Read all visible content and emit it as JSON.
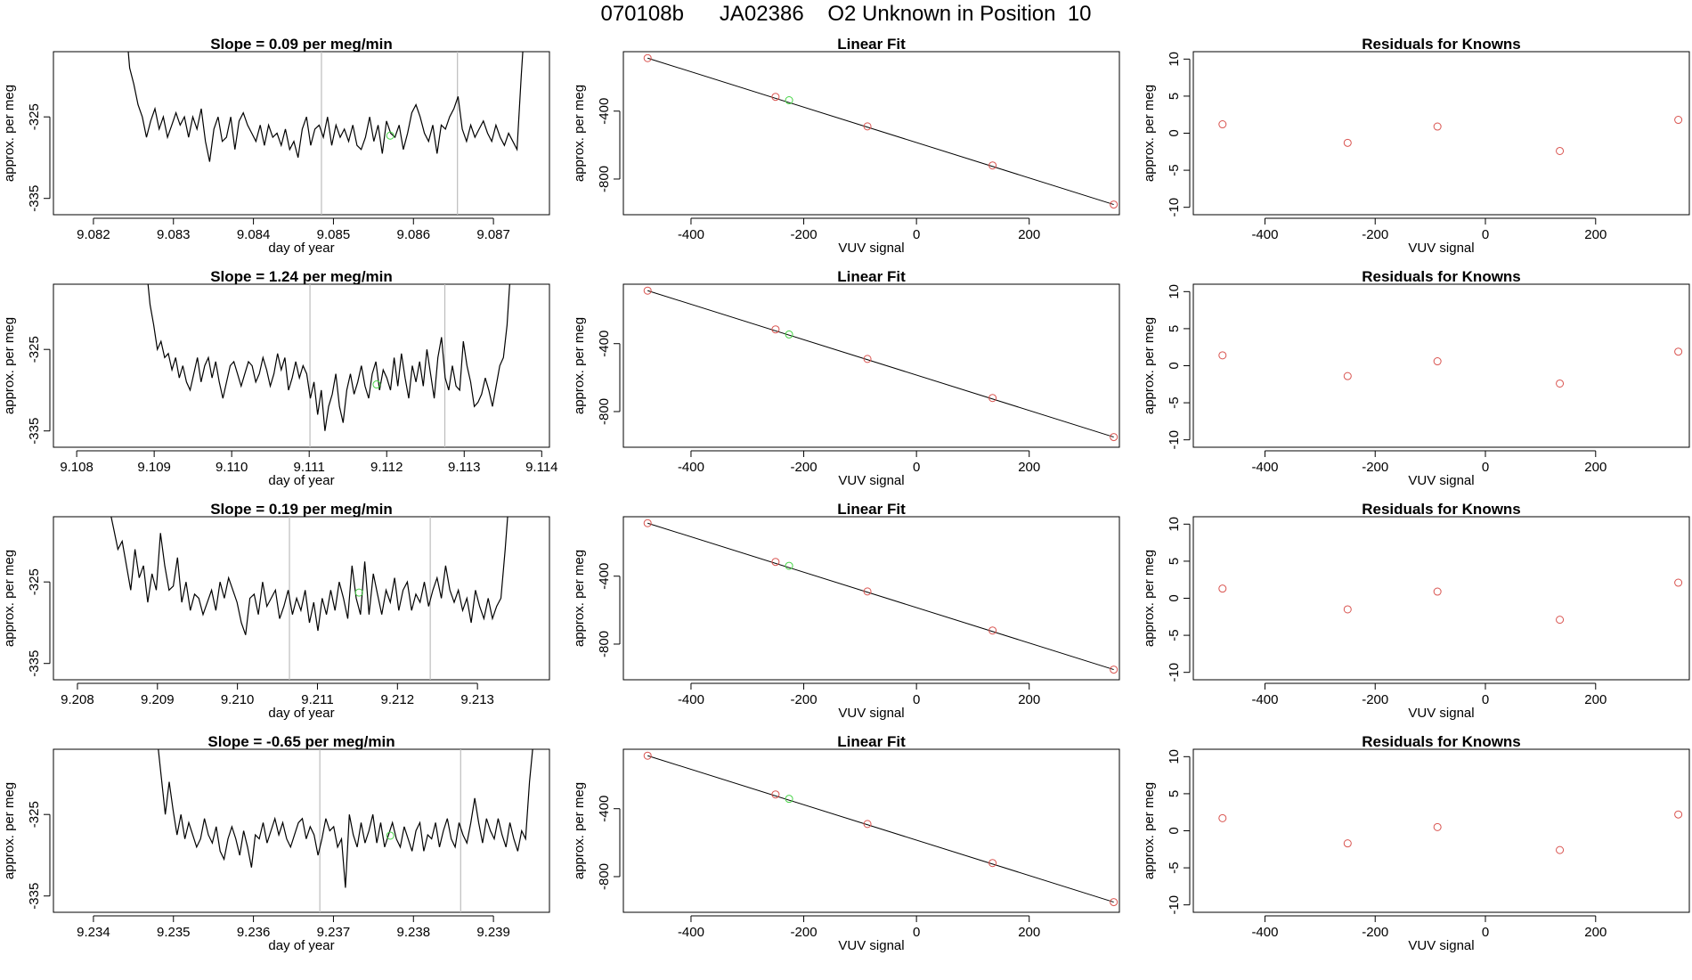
{
  "page": {
    "title": "070108b      JA02386    O2 Unknown in Position  10"
  },
  "colors": {
    "trace": "#000000",
    "frame": "#000000",
    "known_point": "#d9534f",
    "unknown_point": "#46d446",
    "window_line": "#bdbdbd"
  },
  "chart_data": [
    {
      "type": "line",
      "title": "Slope =  0.09  per meg/min",
      "xlabel": "day of year",
      "ylabel": "approx. per meg",
      "xlim": [
        9.0815,
        9.0877
      ],
      "ylim": [
        -337,
        -317
      ],
      "xticks": [
        "9.082",
        "9.083",
        "9.084",
        "9.085",
        "9.086",
        "9.087"
      ],
      "yticks": [
        "-335",
        "-325"
      ],
      "window_lines": [
        9.08485,
        9.08655
      ],
      "unknown_point": [
        9.08571,
        -327.3
      ],
      "trace_start": 9.0824,
      "trace_end": 9.0874,
      "trace": [
        -313,
        -319,
        -321,
        -323.5,
        -325,
        -327.5,
        -325.5,
        -324,
        -326.5,
        -325,
        -327.5,
        -326,
        -324.5,
        -326,
        -325,
        -327.5,
        -325,
        -326.5,
        -324,
        -328,
        -330.5,
        -326.5,
        -325,
        -328,
        -327.5,
        -325,
        -329,
        -325.5,
        -324.5,
        -326,
        -327,
        -328,
        -326,
        -328.5,
        -326,
        -327.5,
        -327,
        -328.5,
        -326.5,
        -329,
        -328,
        -330,
        -326.5,
        -325,
        -328.5,
        -326.5,
        -326,
        -327.5,
        -325,
        -328.5,
        -326,
        -327.5,
        -326.5,
        -328,
        -326,
        -328.5,
        -329,
        -327.5,
        -325,
        -328,
        -326,
        -329.5,
        -325.5,
        -327,
        -327.5,
        -326,
        -329,
        -327,
        -324.5,
        -323.5,
        -325,
        -327,
        -328,
        -326,
        -329.5,
        -326,
        -326.5,
        -325,
        -324,
        -322.5,
        -326.5,
        -328,
        -326,
        -327.5,
        -326.5,
        -325.5,
        -327,
        -328,
        -326,
        -327.5,
        -328.5,
        -327,
        -328,
        -329,
        -320,
        -312
      ],
      "fit_panel": {
        "title": "Linear Fit",
        "xlabel": "VUV signal",
        "ylabel": "approx. per meg",
        "xlim": [
          -520,
          360
        ],
        "ylim": [
          -1010,
          -50
        ],
        "xticks": [
          "-400",
          "-200",
          "0",
          "200"
        ],
        "yticks": [
          "-800",
          "-400"
        ],
        "knowns": [
          [
            -477,
            -88
          ],
          [
            -250,
            -316
          ],
          [
            -87,
            -490
          ],
          [
            135,
            -720
          ],
          [
            350,
            -950
          ]
        ],
        "unknown": [
          -226,
          -336
        ],
        "fit_line": [
          [
            -477,
            -88
          ],
          [
            350,
            -950
          ]
        ]
      },
      "residual_panel": {
        "title": "Residuals for Knowns",
        "xlabel": "VUV signal",
        "ylabel": "approx. per meg",
        "xlim": [
          -530,
          370
        ],
        "ylim": [
          -11,
          11
        ],
        "xticks": [
          "-400",
          "-200",
          "0",
          "200"
        ],
        "yticks": [
          "-10",
          "-5",
          "0",
          "5",
          "10"
        ],
        "residuals": [
          [
            -477,
            1.2
          ],
          [
            -250,
            -1.3
          ],
          [
            -87,
            0.9
          ],
          [
            135,
            -2.4
          ],
          [
            350,
            1.8
          ]
        ]
      }
    },
    {
      "type": "line",
      "title": "Slope =  1.24  per meg/min",
      "xlabel": "day of year",
      "ylabel": "approx. per meg",
      "xlim": [
        9.1077,
        9.1141
      ],
      "ylim": [
        -337,
        -317
      ],
      "xticks": [
        "9.108",
        "9.109",
        "9.110",
        "9.111",
        "9.112",
        "9.113",
        "9.114"
      ],
      "yticks": [
        "-335",
        "-325"
      ],
      "window_lines": [
        9.11101,
        9.11275
      ],
      "unknown_point": [
        9.11187,
        -329.3
      ],
      "trace_start": 9.1089,
      "trace_end": 9.1136,
      "trace": [
        -315,
        -319.5,
        -322,
        -325,
        -324,
        -326,
        -325.5,
        -327.5,
        -326,
        -328.5,
        -327,
        -329,
        -330,
        -328,
        -326,
        -329,
        -327,
        -326,
        -328.5,
        -326.5,
        -329,
        -331,
        -329,
        -327,
        -326.5,
        -328,
        -329.5,
        -328,
        -326.5,
        -327,
        -329,
        -328,
        -326,
        -327.5,
        -329.5,
        -328,
        -325.5,
        -327.5,
        -326,
        -330,
        -328.5,
        -326.5,
        -328.5,
        -327,
        -328,
        -331,
        -329,
        -333,
        -330,
        -335,
        -332,
        -330.5,
        -328,
        -332,
        -334,
        -330,
        -328,
        -330.5,
        -329,
        -327,
        -329.5,
        -331,
        -328,
        -326.5,
        -330,
        -327.5,
        -328.5,
        -330,
        -326,
        -329.5,
        -325.5,
        -328.5,
        -331,
        -327,
        -329,
        -326.5,
        -329.5,
        -325,
        -328,
        -331,
        -326,
        -323.5,
        -328.5,
        -330,
        -327,
        -329.5,
        -330,
        -324,
        -327,
        -329,
        -332,
        -331.5,
        -330.5,
        -328.5,
        -330,
        -332,
        -329.5,
        -327,
        -326,
        -322,
        -315
      ],
      "fit_panel": {
        "title": "Linear Fit",
        "xlabel": "VUV signal",
        "ylabel": "approx. per meg",
        "xlim": [
          -520,
          360
        ],
        "ylim": [
          -1010,
          -50
        ],
        "xticks": [
          "-400",
          "-200",
          "0",
          "200"
        ],
        "yticks": [
          "-800",
          "-400"
        ],
        "knowns": [
          [
            -477,
            -88
          ],
          [
            -250,
            -316
          ],
          [
            -87,
            -490
          ],
          [
            135,
            -720
          ],
          [
            350,
            -950
          ]
        ],
        "unknown": [
          -226,
          -346
        ],
        "fit_line": [
          [
            -477,
            -88
          ],
          [
            350,
            -950
          ]
        ]
      },
      "residual_panel": {
        "title": "Residuals for Knowns",
        "xlabel": "VUV signal",
        "ylabel": "approx. per meg",
        "xlim": [
          -530,
          370
        ],
        "ylim": [
          -11,
          11
        ],
        "xticks": [
          "-400",
          "-200",
          "0",
          "200"
        ],
        "yticks": [
          "-10",
          "-5",
          "0",
          "5",
          "10"
        ],
        "residuals": [
          [
            -477,
            1.4
          ],
          [
            -250,
            -1.4
          ],
          [
            -87,
            0.6
          ],
          [
            135,
            -2.4
          ],
          [
            350,
            1.9
          ]
        ]
      }
    },
    {
      "type": "line",
      "title": "Slope =  0.19  per meg/min",
      "xlabel": "day of year",
      "ylabel": "approx. per meg",
      "xlim": [
        9.2077,
        9.2139
      ],
      "ylim": [
        -337,
        -317
      ],
      "xticks": [
        "9.208",
        "9.209",
        "9.210",
        "9.211",
        "9.212",
        "9.213"
      ],
      "yticks": [
        "-335",
        "-325"
      ],
      "window_lines": [
        9.21065,
        9.21241
      ],
      "unknown_point": [
        9.21152,
        -326.3
      ],
      "trace_start": 9.2084,
      "trace_end": 9.2134,
      "trace": [
        -316,
        -318.5,
        -321,
        -320,
        -323,
        -326,
        -321,
        -324.5,
        -323,
        -327.5,
        -324,
        -326,
        -319,
        -323,
        -326,
        -325.5,
        -322,
        -327.5,
        -325,
        -328.5,
        -326.5,
        -327,
        -329,
        -327.5,
        -326,
        -328.5,
        -325,
        -327,
        -324.5,
        -326,
        -327.5,
        -330,
        -331.5,
        -327,
        -326.5,
        -329,
        -325,
        -328,
        -327,
        -326,
        -329.5,
        -328,
        -326,
        -329,
        -327,
        -328.5,
        -326,
        -330,
        -327.5,
        -331,
        -327,
        -329,
        -326,
        -328.5,
        -325,
        -327,
        -329.5,
        -323,
        -327,
        -329,
        -322.5,
        -329,
        -324,
        -326.5,
        -329,
        -326,
        -327.5,
        -324.5,
        -328.5,
        -326,
        -325,
        -328.5,
        -326.5,
        -327.5,
        -325,
        -328,
        -326,
        -324.5,
        -327,
        -323,
        -326,
        -327.5,
        -326,
        -328.5,
        -327,
        -330,
        -326,
        -328,
        -329.5,
        -327,
        -329.5,
        -328,
        -327,
        -321,
        -314
      ],
      "fit_panel": {
        "title": "Linear Fit",
        "xlabel": "VUV signal",
        "ylabel": "approx. per meg",
        "xlim": [
          -520,
          360
        ],
        "ylim": [
          -1010,
          -50
        ],
        "xticks": [
          "-400",
          "-200",
          "0",
          "200"
        ],
        "yticks": [
          "-800",
          "-400"
        ],
        "knowns": [
          [
            -477,
            -88
          ],
          [
            -250,
            -316
          ],
          [
            -87,
            -490
          ],
          [
            135,
            -720
          ],
          [
            350,
            -950
          ]
        ],
        "unknown": [
          -226,
          -339
        ],
        "fit_line": [
          [
            -477,
            -88
          ],
          [
            350,
            -950
          ]
        ]
      },
      "residual_panel": {
        "title": "Residuals for Knowns",
        "xlabel": "VUV signal",
        "ylabel": "approx. per meg",
        "xlim": [
          -530,
          370
        ],
        "ylim": [
          -11,
          11
        ],
        "xticks": [
          "-400",
          "-200",
          "0",
          "200"
        ],
        "yticks": [
          "-10",
          "-5",
          "0",
          "5",
          "10"
        ],
        "residuals": [
          [
            -477,
            1.3
          ],
          [
            -250,
            -1.5
          ],
          [
            -87,
            0.9
          ],
          [
            135,
            -2.9
          ],
          [
            350,
            2.1
          ]
        ]
      }
    },
    {
      "type": "line",
      "title": "Slope =  -0.65  per meg/min",
      "xlabel": "day of year",
      "ylabel": "approx. per meg",
      "xlim": [
        9.2335,
        9.2397
      ],
      "ylim": [
        -337,
        -317
      ],
      "xticks": [
        "9.234",
        "9.235",
        "9.236",
        "9.237",
        "9.238",
        "9.239"
      ],
      "yticks": [
        "-335",
        "-325"
      ],
      "window_lines": [
        9.23683,
        9.23859
      ],
      "unknown_point": [
        9.23771,
        -327.6
      ],
      "trace_start": 9.2348,
      "trace_end": 9.2395,
      "trace": [
        -316,
        -320.5,
        -325,
        -321,
        -324.5,
        -327.5,
        -325,
        -328,
        -326,
        -327.5,
        -329,
        -328,
        -325.5,
        -327.5,
        -328.5,
        -326.5,
        -329.5,
        -330.5,
        -328,
        -326.5,
        -328,
        -330,
        -327,
        -329,
        -331.5,
        -327.5,
        -328,
        -326,
        -328.5,
        -327,
        -325.5,
        -327.5,
        -326,
        -328,
        -329,
        -327.5,
        -326,
        -325.5,
        -328,
        -326.5,
        -327.5,
        -330,
        -328,
        -325.5,
        -327,
        -326.5,
        -329,
        -328,
        -334,
        -325,
        -327.5,
        -329,
        -326,
        -328.5,
        -327,
        -325,
        -328.5,
        -326,
        -329,
        -327.5,
        -326,
        -328,
        -329,
        -326.5,
        -328,
        -329.5,
        -327,
        -326,
        -329.5,
        -327.5,
        -328,
        -326,
        -329,
        -327,
        -325.5,
        -328,
        -329,
        -326,
        -327.5,
        -328.5,
        -326,
        -323,
        -326,
        -328.5,
        -325.5,
        -327,
        -328,
        -325.5,
        -327.5,
        -329,
        -326,
        -328,
        -329.5,
        -327,
        -328,
        -321,
        -316
      ],
      "fit_panel": {
        "title": "Linear Fit",
        "xlabel": "VUV signal",
        "ylabel": "approx. per meg",
        "xlim": [
          -520,
          360
        ],
        "ylim": [
          -1010,
          -50
        ],
        "xticks": [
          "-400",
          "-200",
          "0",
          "200"
        ],
        "yticks": [
          "-800",
          "-400"
        ],
        "knowns": [
          [
            -477,
            -88
          ],
          [
            -250,
            -316
          ],
          [
            -87,
            -490
          ],
          [
            135,
            -720
          ],
          [
            350,
            -950
          ]
        ],
        "unknown": [
          -226,
          -342
        ],
        "fit_line": [
          [
            -477,
            -88
          ],
          [
            350,
            -950
          ]
        ]
      },
      "residual_panel": {
        "title": "Residuals for Knowns",
        "xlabel": "VUV signal",
        "ylabel": "approx. per meg",
        "xlim": [
          -530,
          370
        ],
        "ylim": [
          -11,
          11
        ],
        "xticks": [
          "-400",
          "-200",
          "0",
          "200"
        ],
        "yticks": [
          "-10",
          "-5",
          "0",
          "5",
          "10"
        ],
        "residuals": [
          [
            -477,
            1.7
          ],
          [
            -250,
            -1.7
          ],
          [
            -87,
            0.5
          ],
          [
            135,
            -2.6
          ],
          [
            350,
            2.2
          ]
        ]
      }
    }
  ]
}
